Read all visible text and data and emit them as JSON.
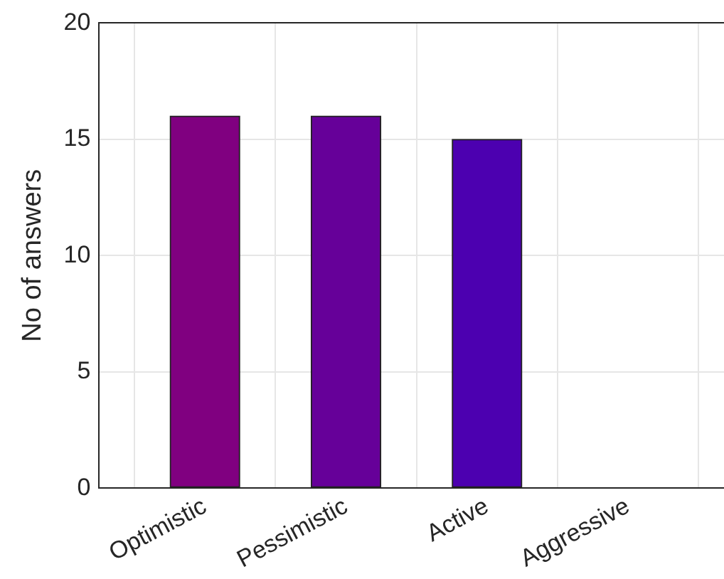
{
  "chart_data": {
    "type": "bar",
    "ylabel": "No of answers",
    "categories": [
      "Optimistic",
      "Pessimistic",
      "Active",
      "Aggressive"
    ],
    "values": [
      16,
      16,
      15,
      0
    ],
    "colors": [
      "#800080",
      "#660099",
      "#4c00b0",
      "#3300cc"
    ],
    "ylim": [
      0,
      20
    ],
    "yticks": [
      0,
      5,
      10,
      15,
      20
    ],
    "grid": true
  }
}
